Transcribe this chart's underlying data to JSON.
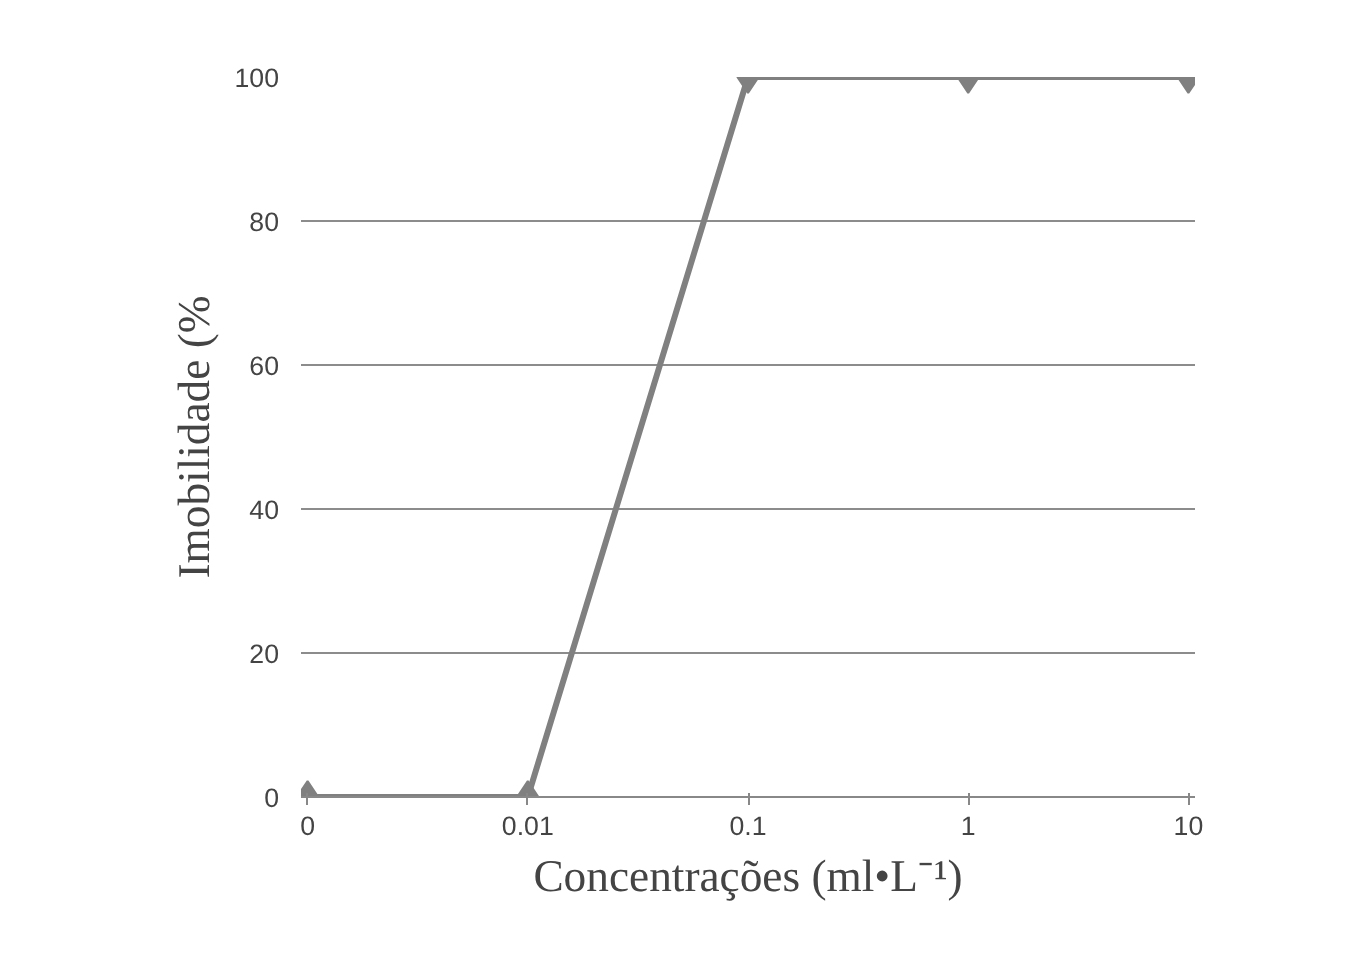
{
  "chart_data": {
    "type": "line",
    "xlabel": "Concentrações (ml•L⁻¹)",
    "ylabel": "Imobilidade (%",
    "categories": [
      "0",
      "0.01",
      "0.1",
      "1",
      "10"
    ],
    "series": [
      {
        "color": "#808080",
        "values": [
          0,
          0,
          100,
          100,
          100
        ]
      }
    ],
    "ylim": [
      0,
      100
    ],
    "yticks": [
      0,
      20,
      40,
      60,
      80,
      100
    ],
    "grid": "y",
    "marker": "diamond",
    "line_style": "solid"
  }
}
